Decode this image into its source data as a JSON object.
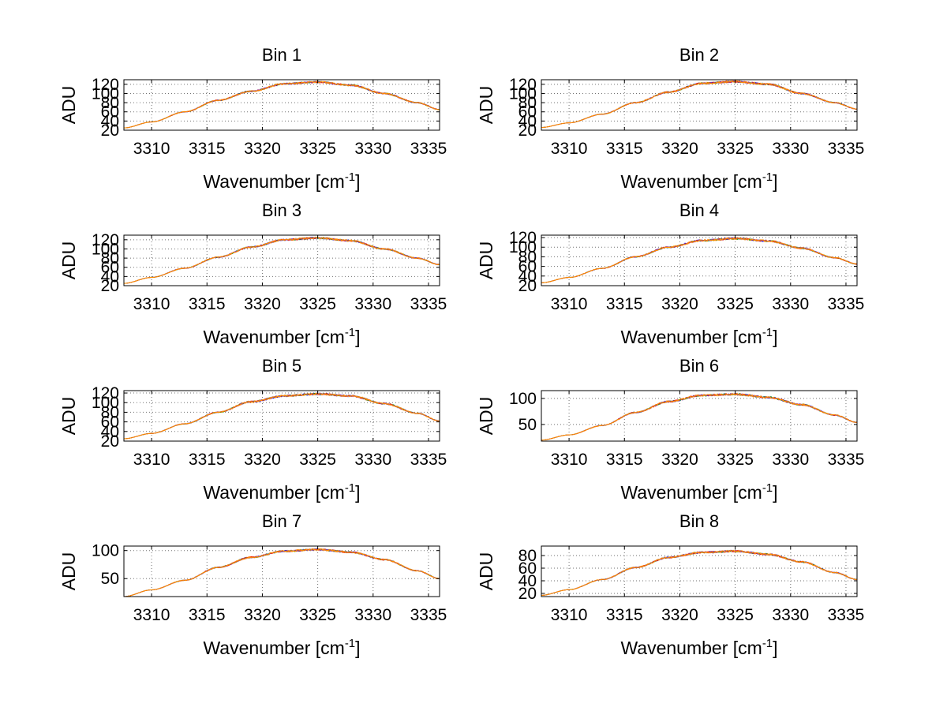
{
  "chart_data": [
    {
      "title": "Bin 1",
      "type": "line",
      "xlabel": "Wavenumber [cm",
      "xlabel_sup": "-1",
      "xlabel_end": "]",
      "ylabel": "ADU",
      "xlim": [
        3307.5,
        3336
      ],
      "ylim": [
        20,
        130
      ],
      "xticks": [
        "3310",
        "3315",
        "3320",
        "3325",
        "3330",
        "3335"
      ],
      "xtick_values": [
        3310,
        3315,
        3320,
        3325,
        3330,
        3335
      ],
      "yticks": [
        "20",
        "40",
        "60",
        "80",
        "100",
        "120"
      ],
      "ytick_values": [
        20,
        40,
        60,
        80,
        100,
        120
      ],
      "x": [
        3307.5,
        3310,
        3313,
        3316,
        3319,
        3322,
        3325,
        3328,
        3331,
        3334,
        3336
      ],
      "values": [
        25,
        38,
        60,
        85,
        105,
        121,
        125,
        118,
        100,
        80,
        65
      ],
      "noise": 2.5
    },
    {
      "title": "Bin 2",
      "type": "line",
      "xlabel": "Wavenumber [cm",
      "xlabel_sup": "-1",
      "xlabel_end": "]",
      "ylabel": "ADU",
      "xlim": [
        3307.5,
        3336
      ],
      "ylim": [
        20,
        130
      ],
      "xticks": [
        "3310",
        "3315",
        "3320",
        "3325",
        "3330",
        "3335"
      ],
      "xtick_values": [
        3310,
        3315,
        3320,
        3325,
        3330,
        3335
      ],
      "yticks": [
        "20",
        "40",
        "60",
        "80",
        "100",
        "120"
      ],
      "ytick_values": [
        20,
        40,
        60,
        80,
        100,
        120
      ],
      "x": [
        3307.5,
        3310,
        3313,
        3316,
        3319,
        3322,
        3325,
        3328,
        3331,
        3334,
        3336
      ],
      "values": [
        26,
        36,
        55,
        80,
        103,
        122,
        126,
        120,
        100,
        80,
        66
      ],
      "noise": 2.5
    },
    {
      "title": "Bin 3",
      "type": "line",
      "xlabel": "Wavenumber [cm",
      "xlabel_sup": "-1",
      "xlabel_end": "]",
      "ylabel": "ADU",
      "xlim": [
        3307.5,
        3336
      ],
      "ylim": [
        20,
        130
      ],
      "xticks": [
        "3310",
        "3315",
        "3320",
        "3325",
        "3330",
        "3335"
      ],
      "xtick_values": [
        3310,
        3315,
        3320,
        3325,
        3330,
        3335
      ],
      "yticks": [
        "20",
        "40",
        "60",
        "80",
        "100",
        "120"
      ],
      "ytick_values": [
        20,
        40,
        60,
        80,
        100,
        120
      ],
      "x": [
        3307.5,
        3310,
        3313,
        3316,
        3319,
        3322,
        3325,
        3328,
        3331,
        3334,
        3336
      ],
      "values": [
        25,
        38,
        58,
        82,
        104,
        120,
        124,
        118,
        100,
        80,
        66
      ],
      "noise": 2.5
    },
    {
      "title": "Bin 4",
      "type": "line",
      "xlabel": "Wavenumber [cm",
      "xlabel_sup": "-1",
      "xlabel_end": "]",
      "ylabel": "ADU",
      "xlim": [
        3307.5,
        3336
      ],
      "ylim": [
        20,
        125
      ],
      "xticks": [
        "3310",
        "3315",
        "3320",
        "3325",
        "3330",
        "3335"
      ],
      "xtick_values": [
        3310,
        3315,
        3320,
        3325,
        3330,
        3335
      ],
      "yticks": [
        "20",
        "40",
        "60",
        "80",
        "100",
        "120"
      ],
      "ytick_values": [
        20,
        40,
        60,
        80,
        100,
        120
      ],
      "x": [
        3307.5,
        3310,
        3313,
        3316,
        3319,
        3322,
        3325,
        3328,
        3331,
        3334,
        3336
      ],
      "values": [
        26,
        37,
        56,
        80,
        100,
        114,
        118,
        113,
        98,
        78,
        65
      ],
      "noise": 2.5
    },
    {
      "title": "Bin 5",
      "type": "line",
      "xlabel": "Wavenumber [cm",
      "xlabel_sup": "-1",
      "xlabel_end": "]",
      "ylabel": "ADU",
      "xlim": [
        3307.5,
        3336
      ],
      "ylim": [
        20,
        125
      ],
      "xticks": [
        "3310",
        "3315",
        "3320",
        "3325",
        "3330",
        "3335"
      ],
      "xtick_values": [
        3310,
        3315,
        3320,
        3325,
        3330,
        3335
      ],
      "yticks": [
        "20",
        "40",
        "60",
        "80",
        "100",
        "120"
      ],
      "ytick_values": [
        20,
        40,
        60,
        80,
        100,
        120
      ],
      "x": [
        3307.5,
        3310,
        3313,
        3316,
        3319,
        3322,
        3325,
        3328,
        3331,
        3334,
        3336
      ],
      "values": [
        25,
        36,
        56,
        80,
        102,
        114,
        118,
        114,
        98,
        78,
        62
      ],
      "noise": 2.5
    },
    {
      "title": "Bin 6",
      "type": "line",
      "xlabel": "Wavenumber [cm",
      "xlabel_sup": "-1",
      "xlabel_end": "]",
      "ylabel": "ADU",
      "xlim": [
        3307.5,
        3336
      ],
      "ylim": [
        18,
        115
      ],
      "xticks": [
        "3310",
        "3315",
        "3320",
        "3325",
        "3330",
        "3335"
      ],
      "xtick_values": [
        3310,
        3315,
        3320,
        3325,
        3330,
        3335
      ],
      "yticks": [
        "50",
        "100"
      ],
      "ytick_values": [
        50,
        100
      ],
      "x": [
        3307.5,
        3310,
        3313,
        3316,
        3319,
        3322,
        3325,
        3328,
        3331,
        3334,
        3336
      ],
      "values": [
        20,
        30,
        48,
        73,
        94,
        106,
        108,
        102,
        88,
        68,
        54
      ],
      "noise": 2.5
    },
    {
      "title": "Bin 7",
      "type": "line",
      "xlabel": "Wavenumber [cm",
      "xlabel_sup": "-1",
      "xlabel_end": "]",
      "ylabel": "ADU",
      "xlim": [
        3307.5,
        3336
      ],
      "ylim": [
        18,
        108
      ],
      "xticks": [
        "3310",
        "3315",
        "3320",
        "3325",
        "3330",
        "3335"
      ],
      "xtick_values": [
        3310,
        3315,
        3320,
        3325,
        3330,
        3335
      ],
      "yticks": [
        "50",
        "100"
      ],
      "ytick_values": [
        50,
        100
      ],
      "x": [
        3307.5,
        3310,
        3313,
        3316,
        3319,
        3322,
        3325,
        3328,
        3331,
        3334,
        3336
      ],
      "values": [
        18,
        30,
        47,
        70,
        88,
        99,
        102,
        97,
        84,
        64,
        50
      ],
      "noise": 2.0
    },
    {
      "title": "Bin 8",
      "type": "line",
      "xlabel": "Wavenumber [cm",
      "xlabel_sup": "-1",
      "xlabel_end": "]",
      "ylabel": "ADU",
      "xlim": [
        3307.5,
        3336
      ],
      "ylim": [
        15,
        95
      ],
      "xticks": [
        "3310",
        "3315",
        "3320",
        "3325",
        "3330",
        "3335"
      ],
      "xtick_values": [
        3310,
        3315,
        3320,
        3325,
        3330,
        3335
      ],
      "yticks": [
        "20",
        "40",
        "60",
        "80"
      ],
      "ytick_values": [
        20,
        40,
        60,
        80
      ],
      "x": [
        3307.5,
        3310,
        3313,
        3316,
        3319,
        3322,
        3325,
        3328,
        3331,
        3334,
        3336
      ],
      "values": [
        17,
        26,
        42,
        61,
        77,
        85,
        87,
        82,
        70,
        53,
        42
      ],
      "noise": 2.0
    }
  ],
  "series_colors": [
    "#0000ff",
    "#00a000",
    "#ff0000",
    "#7f3f98",
    "#ff8c00"
  ],
  "grid": true
}
